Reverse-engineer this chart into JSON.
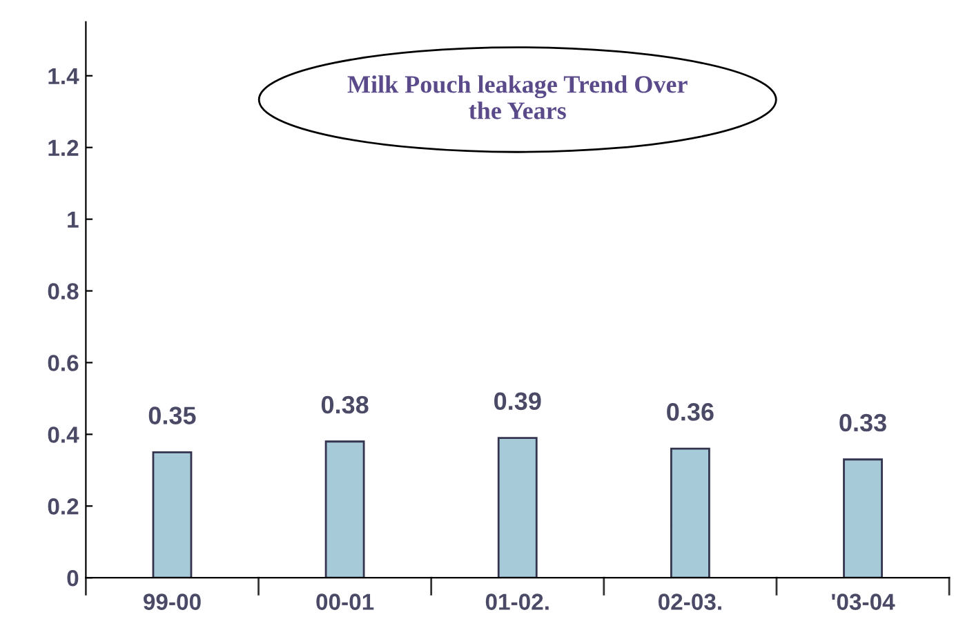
{
  "chart_data": {
    "type": "bar",
    "title": "Milk Pouch leakage Trend Over\nthe Years",
    "categories": [
      "99-00",
      "00-01",
      "01-02.",
      "02-03.",
      "'03-04"
    ],
    "values": [
      0.35,
      0.38,
      0.39,
      0.36,
      0.33
    ],
    "color": "#a6cad8",
    "ylim": [
      0,
      1.55
    ],
    "yticks": [
      0,
      0.2,
      0.4,
      0.6,
      0.8,
      1,
      1.2,
      1.4
    ],
    "data_labels": true,
    "grid": false,
    "legend": false
  }
}
